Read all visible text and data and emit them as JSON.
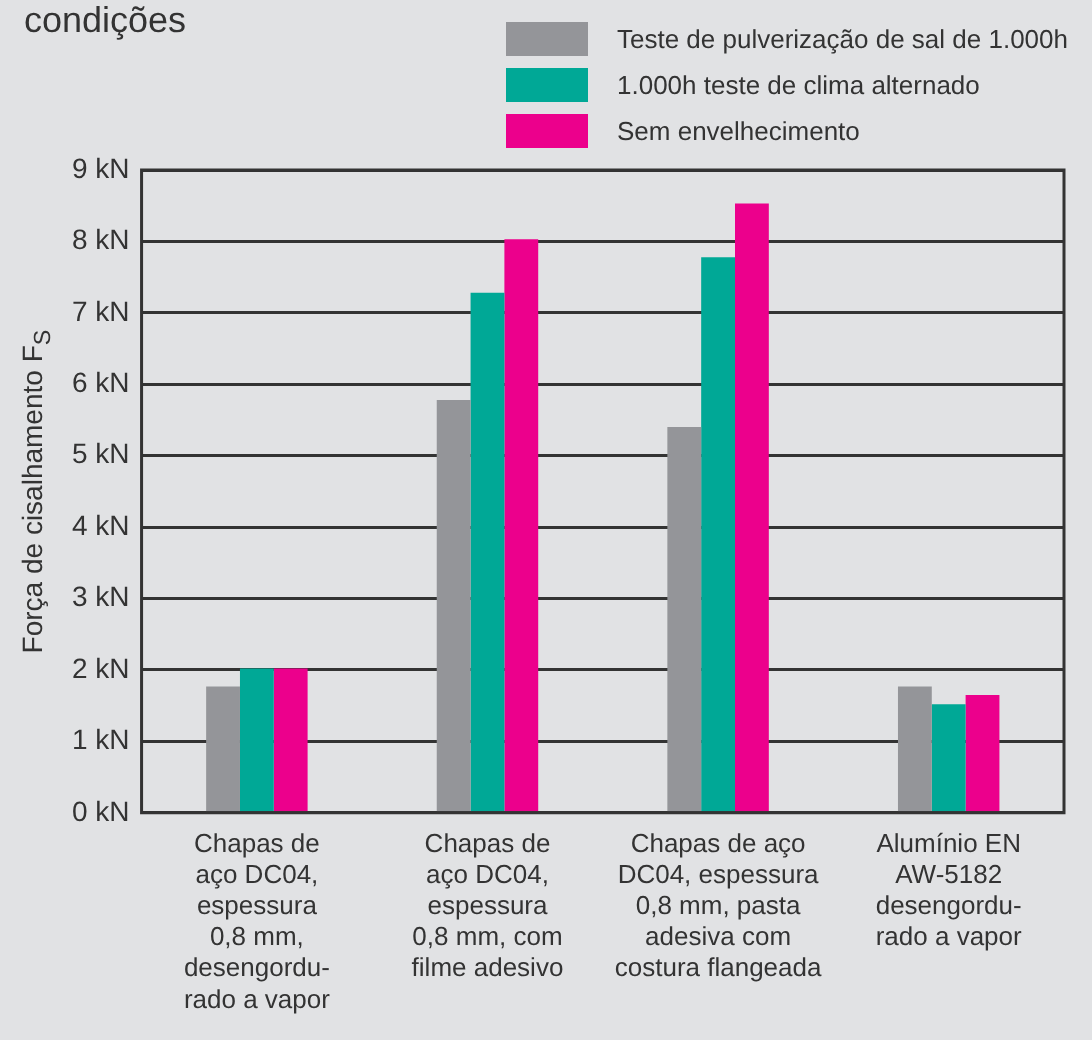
{
  "chart_data": {
    "type": "bar",
    "title": "condições",
    "ylabel": "Força de cisalhamento F$_{S}$",
    "categories": [
      "Chapas de\naço DC04,\nespessura\n0,8 mm,\ndesengordu-\nrado a vapor",
      "Chapas de\naço DC04,\nespessura\n0,8 mm, com\nfilme adesivo",
      "Chapas de aço\nDC04, espessura\n0,8 mm, pasta\nadesiva com\ncostura flangeada",
      "Alumínio EN\nAW-5182\ndesengordu-\nrado a vapor"
    ],
    "series": [
      {
        "name": "Teste de pulverização de sal de 1.000h",
        "color": "#949599",
        "values": [
          1.77,
          5.78,
          5.4,
          1.77
        ]
      },
      {
        "name": "1.000h teste de clima alternado",
        "color": "#00a896",
        "values": [
          2.02,
          7.28,
          7.78,
          1.52
        ]
      },
      {
        "name": "Sem envelhecimento",
        "color": "#ec008c",
        "values": [
          2.02,
          8.03,
          8.53,
          1.65
        ]
      }
    ],
    "ylim": [
      0,
      9
    ],
    "yticks": [
      {
        "value": 0,
        "label": "0 kN"
      },
      {
        "value": 1,
        "label": "1 kN"
      },
      {
        "value": 2,
        "label": "2 kN"
      },
      {
        "value": 3,
        "label": "3 kN"
      },
      {
        "value": 4,
        "label": "4 kN"
      },
      {
        "value": 5,
        "label": "5 kN"
      },
      {
        "value": 6,
        "label": "6 kN"
      },
      {
        "value": 7,
        "label": "7 kN"
      },
      {
        "value": 8,
        "label": "8 kN"
      },
      {
        "value": 9,
        "label": "9 kN"
      }
    ],
    "grid": "y",
    "legend": "top right"
  }
}
